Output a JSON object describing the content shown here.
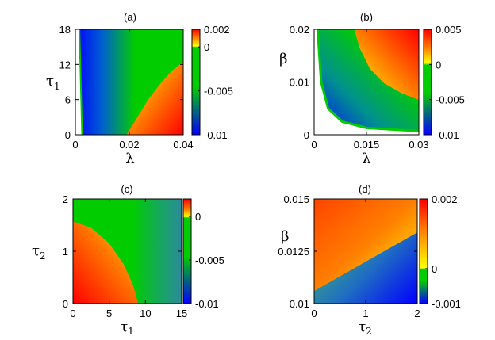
{
  "colormap": [
    "#0000ff",
    "#00cc00",
    "#ffff00",
    "#ff7f00",
    "#ff0000"
  ],
  "chart_data": [
    {
      "type": "heatmap",
      "title": "(a)",
      "xlabel": "λ",
      "ylabel": "τ1",
      "xlabel_main": "λ",
      "xlabel_sub": "",
      "ylabel_main": "τ",
      "ylabel_sub": "1",
      "xlim": [
        0,
        0.04
      ],
      "ylim": [
        0,
        18
      ],
      "xticks": [
        "0",
        "0.02",
        "0.04"
      ],
      "xtick_values": [
        0,
        0.02,
        0.04
      ],
      "yticks": [
        "0",
        "6",
        "12",
        "18"
      ],
      "ytick_values": [
        0,
        6,
        12,
        18
      ],
      "colorbar": {
        "range": [
          -0.01,
          0.002
        ],
        "ticks": [
          "0.002",
          "0",
          "-0.005",
          "-0.01"
        ],
        "tick_values": [
          0.002,
          0,
          -0.005,
          -0.01
        ]
      },
      "regions": [
        {
          "name": "undefined (white)",
          "boundary": {
            "x": [
              0.0025,
              0.0015
            ],
            "y": [
              0,
              18
            ]
          }
        },
        {
          "name": "zero-contour",
          "boundary": {
            "x": [
              0.019,
              0.023,
              0.027,
              0.032,
              0.036,
              0.04
            ],
            "y": [
              0,
              3,
              6,
              9,
              11,
              12.5
            ]
          }
        }
      ]
    },
    {
      "type": "heatmap",
      "title": "(b)",
      "xlabel": "λ",
      "ylabel": "β",
      "xlabel_main": "λ",
      "xlabel_sub": "",
      "ylabel_main": "β",
      "ylabel_sub": "",
      "xlim": [
        0,
        0.03
      ],
      "ylim": [
        0,
        0.02
      ],
      "xticks": [
        "0",
        "0.015",
        "0.03"
      ],
      "xtick_values": [
        0,
        0.015,
        0.03
      ],
      "yticks": [
        "0",
        "0.01",
        "0.02"
      ],
      "ytick_values": [
        0,
        0.01,
        0.02
      ],
      "colorbar": {
        "range": [
          -0.01,
          0.005
        ],
        "ticks": [
          "0.005",
          "0",
          "-0.005",
          "-0.01"
        ],
        "tick_values": [
          0.005,
          0,
          -0.005,
          -0.01
        ]
      },
      "regions": [
        {
          "name": "undefined (white)",
          "boundary": {
            "x": [
              0.001,
              0.002,
              0.004,
              0.008,
              0.015,
              0.03
            ],
            "y": [
              0.02,
              0.01,
              0.005,
              0.0025,
              0.0013,
              0.0007
            ]
          }
        },
        {
          "name": "zero-contour",
          "boundary": {
            "x": [
              0.0115,
              0.013,
              0.016,
              0.02,
              0.025,
              0.03
            ],
            "y": [
              0.02,
              0.0165,
              0.0125,
              0.0098,
              0.0079,
              0.0066
            ]
          }
        }
      ]
    },
    {
      "type": "heatmap",
      "title": "(c)",
      "xlabel": "τ1",
      "ylabel": "τ2",
      "xlabel_main": "τ",
      "xlabel_sub": "1",
      "ylabel_main": "τ",
      "ylabel_sub": "2",
      "xlim": [
        0,
        15
      ],
      "ylim": [
        0,
        2
      ],
      "xticks": [
        "0",
        "5",
        "10",
        "15"
      ],
      "xtick_values": [
        0,
        5,
        10,
        15
      ],
      "yticks": [
        "0",
        "1",
        "2"
      ],
      "ytick_values": [
        0,
        1,
        2
      ],
      "colorbar": {
        "range": [
          -0.01,
          0.002
        ],
        "ticks": [
          "0",
          "-0.005",
          "-0.01"
        ],
        "tick_values": [
          0,
          -0.005,
          -0.01
        ]
      },
      "regions": [
        {
          "name": "zero-contour",
          "boundary": {
            "x": [
              0,
              2.5,
              5,
              7,
              8.3,
              9
            ],
            "y": [
              1.57,
              1.45,
              1.15,
              0.75,
              0.35,
              0
            ]
          }
        }
      ]
    },
    {
      "type": "heatmap",
      "title": "(d)",
      "xlabel": "τ2",
      "ylabel": "β",
      "xlabel_main": "τ",
      "xlabel_sub": "2",
      "ylabel_main": "β",
      "ylabel_sub": "",
      "xlim": [
        0,
        2
      ],
      "ylim": [
        0.01,
        0.015
      ],
      "xticks": [
        "0",
        "1",
        "2"
      ],
      "xtick_values": [
        0,
        1,
        2
      ],
      "yticks": [
        "0.01",
        "0.0125",
        "0.015"
      ],
      "ytick_values": [
        0.01,
        0.0125,
        0.015
      ],
      "colorbar": {
        "range": [
          -0.001,
          0.002
        ],
        "ticks": [
          "0.002",
          "0",
          "-0.001"
        ],
        "tick_values": [
          0.002,
          0,
          -0.001
        ]
      },
      "regions": [
        {
          "name": "zero-contour",
          "boundary": {
            "x": [
              0,
              2
            ],
            "y": [
              0.0106,
              0.0134
            ]
          }
        }
      ]
    }
  ]
}
